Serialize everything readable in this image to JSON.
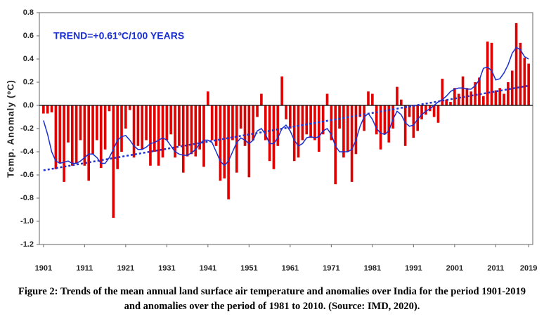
{
  "chart_data": {
    "type": "bar",
    "annotation": "TREND=+0.61ºC/100 YEARS",
    "ylabel": "Temp. Anomaly (ºC)",
    "caption": "Figure 2: Trends of the mean annual land surface air temperature and anomalies over India for the period 1901-2019 and anomalies over the period of 1981 to 2010. (Source: IMD, 2020).",
    "x": [
      1901,
      1902,
      1903,
      1904,
      1905,
      1906,
      1907,
      1908,
      1909,
      1910,
      1911,
      1912,
      1913,
      1914,
      1915,
      1916,
      1917,
      1918,
      1919,
      1920,
      1921,
      1922,
      1923,
      1924,
      1925,
      1926,
      1927,
      1928,
      1929,
      1930,
      1931,
      1932,
      1933,
      1934,
      1935,
      1936,
      1937,
      1938,
      1939,
      1940,
      1941,
      1942,
      1943,
      1944,
      1945,
      1946,
      1947,
      1948,
      1949,
      1950,
      1951,
      1952,
      1953,
      1954,
      1955,
      1956,
      1957,
      1958,
      1959,
      1960,
      1961,
      1962,
      1963,
      1964,
      1965,
      1966,
      1967,
      1968,
      1969,
      1970,
      1971,
      1972,
      1973,
      1974,
      1975,
      1976,
      1977,
      1978,
      1979,
      1980,
      1981,
      1982,
      1983,
      1984,
      1985,
      1986,
      1987,
      1988,
      1989,
      1990,
      1991,
      1992,
      1993,
      1994,
      1995,
      1996,
      1997,
      1998,
      1999,
      2000,
      2001,
      2002,
      2003,
      2004,
      2005,
      2006,
      2007,
      2008,
      2009,
      2010,
      2011,
      2012,
      2013,
      2014,
      2015,
      2016,
      2017,
      2018,
      2019
    ],
    "bars": {
      "color": "#e00000",
      "values": [
        -0.07,
        -0.07,
        -0.06,
        -0.55,
        -0.5,
        -0.66,
        -0.32,
        -0.52,
        -0.5,
        -0.3,
        -0.52,
        -0.65,
        -0.42,
        -0.3,
        -0.54,
        -0.38,
        -0.05,
        -0.97,
        -0.55,
        -0.4,
        -0.2,
        -0.04,
        -0.45,
        -0.35,
        -0.38,
        -0.3,
        -0.52,
        -0.4,
        -0.52,
        -0.45,
        -0.3,
        -0.25,
        -0.45,
        -0.35,
        -0.58,
        -0.44,
        -0.42,
        -0.44,
        -0.38,
        -0.53,
        0.12,
        -0.3,
        -0.35,
        -0.65,
        -0.63,
        -0.81,
        -0.3,
        -0.58,
        -0.2,
        -0.35,
        -0.62,
        -0.3,
        -0.1,
        0.1,
        -0.3,
        -0.48,
        -0.55,
        -0.35,
        0.25,
        -0.12,
        -0.2,
        -0.48,
        -0.45,
        -0.3,
        -0.25,
        -0.28,
        -0.3,
        -0.4,
        -0.25,
        0.1,
        -0.3,
        -0.68,
        -0.2,
        -0.45,
        -0.4,
        -0.66,
        -0.42,
        -0.1,
        -0.22,
        0.12,
        0.1,
        -0.25,
        -0.38,
        -0.25,
        -0.32,
        -0.2,
        0.16,
        0.05,
        -0.35,
        -0.1,
        -0.28,
        -0.22,
        -0.12,
        -0.08,
        -0.05,
        -0.1,
        -0.15,
        0.23,
        0.05,
        0.03,
        0.15,
        0.1,
        0.25,
        0.15,
        0.12,
        0.2,
        0.24,
        0.08,
        0.55,
        0.54,
        0.13,
        0.15,
        0.1,
        0.2,
        0.3,
        0.71,
        0.54,
        0.41,
        0.36
      ]
    },
    "smooth": {
      "color": "#1a2fd0",
      "values": [
        -0.13,
        -0.25,
        -0.4,
        -0.48,
        -0.5,
        -0.49,
        -0.48,
        -0.5,
        -0.5,
        -0.48,
        -0.45,
        -0.42,
        -0.42,
        -0.45,
        -0.5,
        -0.5,
        -0.45,
        -0.38,
        -0.3,
        -0.27,
        -0.26,
        -0.3,
        -0.35,
        -0.38,
        -0.38,
        -0.36,
        -0.33,
        -0.32,
        -0.3,
        -0.28,
        -0.3,
        -0.35,
        -0.4,
        -0.42,
        -0.43,
        -0.43,
        -0.41,
        -0.38,
        -0.33,
        -0.3,
        -0.3,
        -0.32,
        -0.4,
        -0.48,
        -0.52,
        -0.48,
        -0.4,
        -0.32,
        -0.28,
        -0.3,
        -0.33,
        -0.3,
        -0.22,
        -0.2,
        -0.25,
        -0.33,
        -0.33,
        -0.28,
        -0.2,
        -0.17,
        -0.22,
        -0.3,
        -0.35,
        -0.33,
        -0.28,
        -0.27,
        -0.28,
        -0.27,
        -0.22,
        -0.2,
        -0.25,
        -0.35,
        -0.4,
        -0.4,
        -0.4,
        -0.38,
        -0.3,
        -0.18,
        -0.1,
        -0.07,
        -0.12,
        -0.2,
        -0.24,
        -0.25,
        -0.22,
        -0.12,
        -0.05,
        -0.08,
        -0.15,
        -0.18,
        -0.17,
        -0.12,
        -0.08,
        -0.05,
        -0.03,
        0,
        0.03,
        0.05,
        0.08,
        0.12,
        0.14,
        0.15,
        0.15,
        0.14,
        0.14,
        0.17,
        0.22,
        0.32,
        0.33,
        0.3,
        0.22,
        0.23,
        0.28,
        0.35,
        0.45,
        0.5,
        0.48,
        0.42,
        0.4
      ]
    },
    "trend": {
      "color": "#2233cc",
      "x": [
        1901,
        2019
      ],
      "values": [
        -0.56,
        0.17
      ]
    },
    "xlim": [
      1900,
      2020
    ],
    "xticks": [
      1901,
      1911,
      1921,
      1931,
      1941,
      1951,
      1961,
      1971,
      1981,
      1991,
      2001,
      2011,
      2019
    ],
    "ylim": [
      -1.2,
      0.8
    ],
    "yticks": [
      0.8,
      0.6,
      0.4,
      0.2,
      {
        "value": 0,
        "label": "0.0"
      },
      -0.2,
      -0.4,
      -0.6,
      -0.8,
      {
        "value": -1,
        "label": "-1.0"
      },
      -1.2
    ]
  }
}
